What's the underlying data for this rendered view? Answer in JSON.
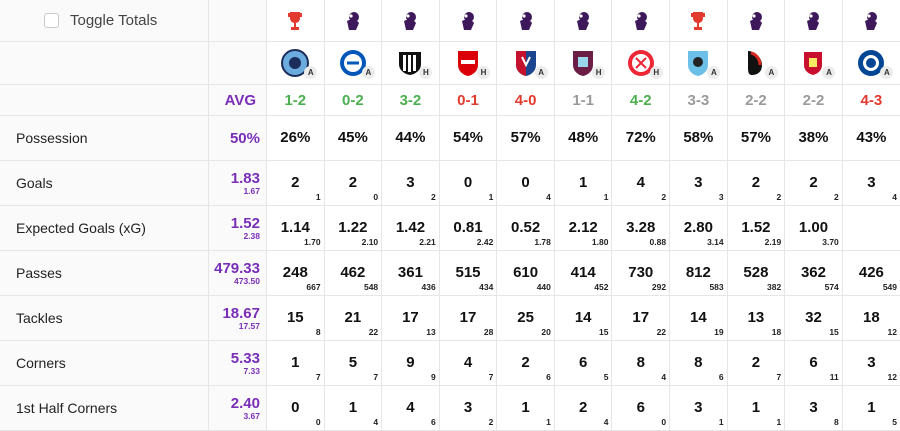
{
  "toggle_label": "Toggle Totals",
  "avg_header": "AVG",
  "colors": {
    "win": "#4caf50",
    "loss": "#e23a2e",
    "draw": "#9a9a9a",
    "avg": "#7a2eb8"
  },
  "matches": [
    {
      "comp": "fa-cup-icon",
      "crest": "man-city-crest-icon",
      "venue": "A",
      "score": "1-2",
      "result": "win"
    },
    {
      "comp": "premier-league-icon",
      "crest": "brighton-crest-icon",
      "venue": "A",
      "score": "0-2",
      "result": "win"
    },
    {
      "comp": "premier-league-icon",
      "crest": "newcastle-crest-icon",
      "venue": "H",
      "score": "3-2",
      "result": "win"
    },
    {
      "comp": "premier-league-icon",
      "crest": "arsenal-crest-icon",
      "venue": "H",
      "score": "0-1",
      "result": "loss"
    },
    {
      "comp": "premier-league-icon",
      "crest": "crystal-palace-crest-icon",
      "venue": "A",
      "score": "4-0",
      "result": "loss"
    },
    {
      "comp": "premier-league-icon",
      "crest": "burnley-crest-icon",
      "venue": "H",
      "score": "1-1",
      "result": "draw"
    },
    {
      "comp": "premier-league-icon",
      "crest": "sheffield-united-crest-icon",
      "venue": "H",
      "score": "4-2",
      "result": "win"
    },
    {
      "comp": "fa-cup-icon",
      "crest": "coventry-crest-icon",
      "venue": "A",
      "score": "3-3",
      "result": "draw"
    },
    {
      "comp": "premier-league-icon",
      "crest": "bournemouth-crest-icon",
      "venue": "A",
      "score": "2-2",
      "result": "draw"
    },
    {
      "comp": "premier-league-icon",
      "crest": "liverpool-crest-icon",
      "venue": "A",
      "score": "2-2",
      "result": "draw"
    },
    {
      "comp": "premier-league-icon",
      "crest": "chelsea-crest-icon",
      "venue": "A",
      "score": "4-3",
      "result": "loss"
    }
  ],
  "stats": [
    {
      "label": "Possession",
      "avg": "50%",
      "avg_sub": "",
      "values": [
        "26%",
        "45%",
        "44%",
        "54%",
        "57%",
        "48%",
        "72%",
        "58%",
        "57%",
        "38%",
        "43%"
      ],
      "opp": [
        "",
        "",
        "",
        "",
        "",
        "",
        "",
        "",
        "",
        "",
        ""
      ]
    },
    {
      "label": "Goals",
      "avg": "1.83",
      "avg_sub": "1.67",
      "values": [
        "2",
        "2",
        "3",
        "0",
        "0",
        "1",
        "4",
        "3",
        "2",
        "2",
        "3"
      ],
      "opp": [
        "1",
        "0",
        "2",
        "1",
        "4",
        "1",
        "2",
        "3",
        "2",
        "2",
        "4"
      ]
    },
    {
      "label": "Expected Goals (xG)",
      "avg": "1.52",
      "avg_sub": "2.38",
      "values": [
        "1.14",
        "1.22",
        "1.42",
        "0.81",
        "0.52",
        "2.12",
        "3.28",
        "2.80",
        "1.52",
        "1.00",
        ""
      ],
      "opp": [
        "1.70",
        "2.10",
        "2.21",
        "2.42",
        "1.78",
        "1.80",
        "0.88",
        "3.14",
        "2.19",
        "3.70",
        ""
      ]
    },
    {
      "label": "Passes",
      "avg": "479.33",
      "avg_sub": "473.50",
      "values": [
        "248",
        "462",
        "361",
        "515",
        "610",
        "414",
        "730",
        "812",
        "528",
        "362",
        "426"
      ],
      "opp": [
        "667",
        "548",
        "436",
        "434",
        "440",
        "452",
        "292",
        "583",
        "382",
        "574",
        "549"
      ]
    },
    {
      "label": "Tackles",
      "avg": "18.67",
      "avg_sub": "17.57",
      "values": [
        "15",
        "21",
        "17",
        "17",
        "25",
        "14",
        "17",
        "14",
        "13",
        "32",
        "18"
      ],
      "opp": [
        "8",
        "22",
        "13",
        "28",
        "20",
        "15",
        "22",
        "19",
        "18",
        "15",
        "12"
      ]
    },
    {
      "label": "Corners",
      "avg": "5.33",
      "avg_sub": "7.33",
      "values": [
        "1",
        "5",
        "9",
        "4",
        "2",
        "6",
        "8",
        "8",
        "2",
        "6",
        "3"
      ],
      "opp": [
        "7",
        "7",
        "9",
        "7",
        "6",
        "5",
        "4",
        "6",
        "7",
        "11",
        "12"
      ]
    },
    {
      "label": "1st Half Corners",
      "avg": "2.40",
      "avg_sub": "3.67",
      "values": [
        "0",
        "1",
        "4",
        "3",
        "1",
        "2",
        "6",
        "3",
        "1",
        "3",
        "1"
      ],
      "opp": [
        "0",
        "4",
        "6",
        "2",
        "1",
        "4",
        "0",
        "1",
        "1",
        "8",
        "5"
      ]
    }
  ]
}
